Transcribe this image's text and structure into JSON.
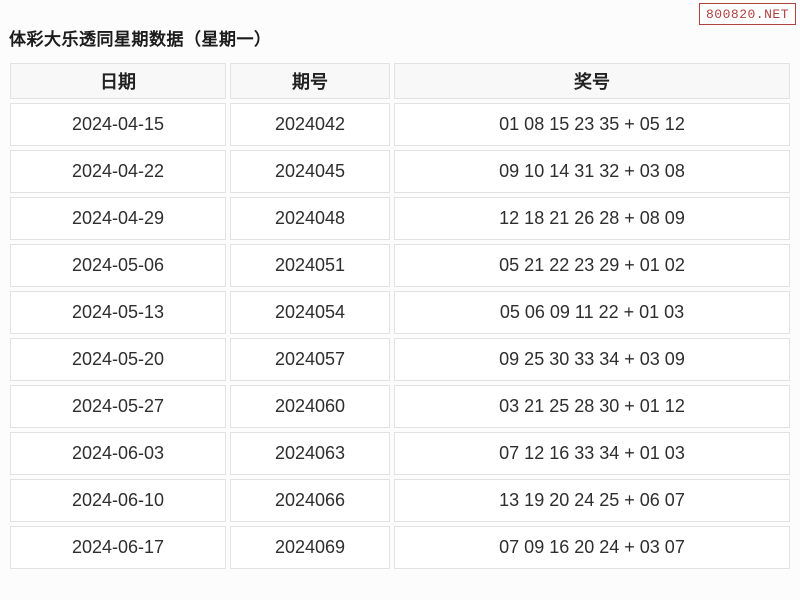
{
  "watermark": {
    "text": "800820.NET"
  },
  "title": "体彩大乐透同星期数据（星期一）",
  "colors": {
    "watermark_red": "#b0413e",
    "cell_border": "#e2e2e2",
    "header_bg": "#f8f8f8"
  },
  "table": {
    "headers": [
      "日期",
      "期号",
      "奖号"
    ],
    "rows": [
      [
        "2024-04-15",
        "2024042",
        "01 08 15 23 35 + 05 12"
      ],
      [
        "2024-04-22",
        "2024045",
        "09 10 14 31 32 + 03 08"
      ],
      [
        "2024-04-29",
        "2024048",
        "12 18 21 26 28 + 08 09"
      ],
      [
        "2024-05-06",
        "2024051",
        "05 21 22 23 29 + 01 02"
      ],
      [
        "2024-05-13",
        "2024054",
        "05 06 09 11 22 + 01 03"
      ],
      [
        "2024-05-20",
        "2024057",
        "09 25 30 33 34 + 03 09"
      ],
      [
        "2024-05-27",
        "2024060",
        "03 21 25 28 30 + 01 12"
      ],
      [
        "2024-06-03",
        "2024063",
        "07 12 16 33 34 + 01 03"
      ],
      [
        "2024-06-10",
        "2024066",
        "13 19 20 24 25 + 06 07"
      ],
      [
        "2024-06-17",
        "2024069",
        "07 09 16 20 24 + 03 07"
      ]
    ]
  }
}
